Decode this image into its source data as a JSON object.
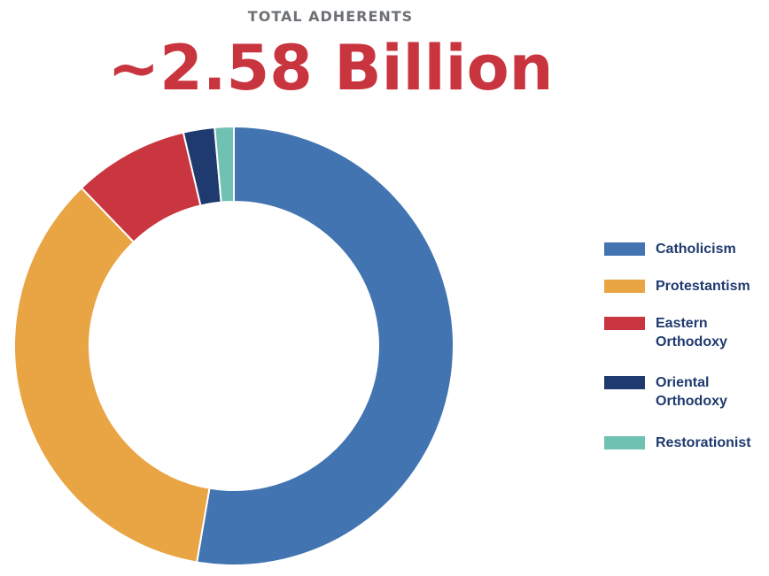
{
  "chart_data": {
    "type": "pie",
    "variant": "donut",
    "subtitle": "TOTAL ADHERENTS",
    "title": "~2.58 Billion",
    "unit": "percent of total (estimated)",
    "categories": [
      "Catholicism",
      "Protestantism",
      "Eastern Orthodoxy",
      "Oriental Orthodoxy",
      "Restorationist"
    ],
    "legend_labels": [
      [
        "Catholicism"
      ],
      [
        "Protestantism"
      ],
      [
        "Eastern",
        "Orthodoxy"
      ],
      [
        "Oriental",
        "Orthodoxy"
      ],
      [
        "Restorationist"
      ]
    ],
    "values": [
      52.7,
      35.1,
      8.5,
      2.3,
      1.4
    ],
    "colors": [
      "#4174b0",
      "#e9a443",
      "#c9363f",
      "#1f3a6e",
      "#6fc2b2"
    ],
    "legend_position": "right"
  }
}
